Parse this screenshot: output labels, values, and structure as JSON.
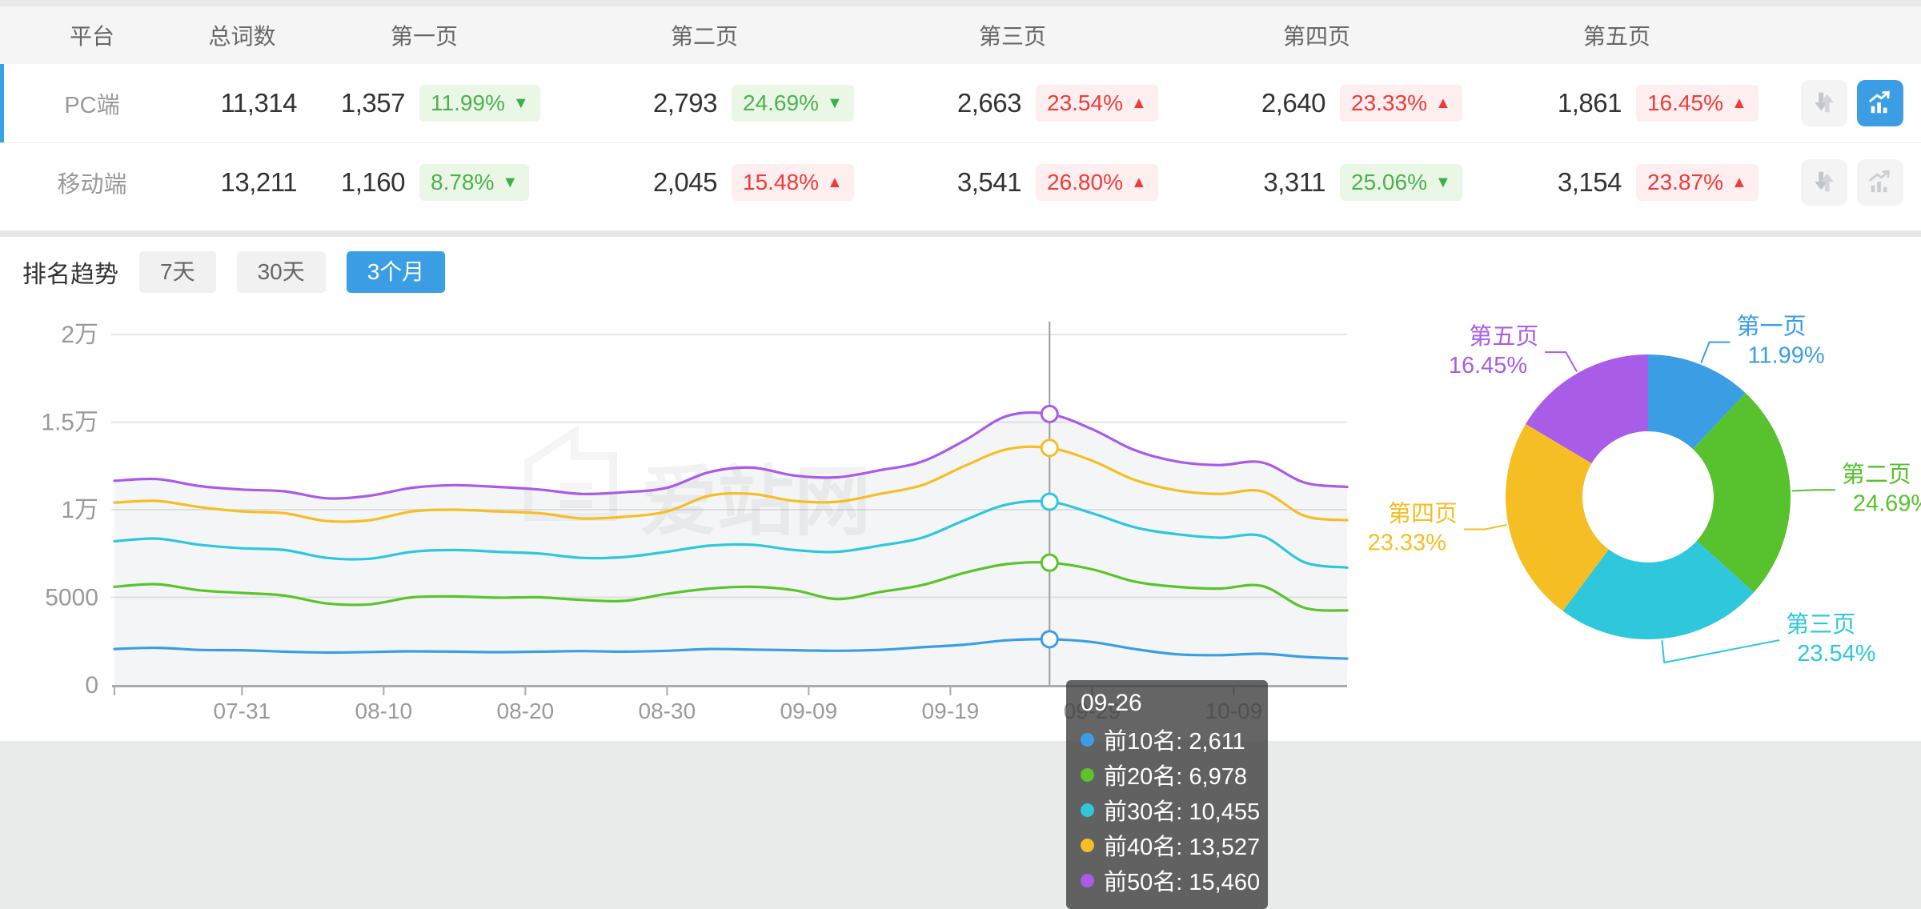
{
  "accent_color": "#3b9ee5",
  "table": {
    "headers": [
      "平台",
      "总词数",
      "第一页",
      "第二页",
      "第三页",
      "第四页",
      "第五页"
    ],
    "rows": [
      {
        "platform": "PC端",
        "total": "11,314",
        "selected": true,
        "pages": [
          {
            "count": "1,357",
            "pct": "11.99%",
            "arrow": "▼",
            "direction": "down"
          },
          {
            "count": "2,793",
            "pct": "24.69%",
            "arrow": "▼",
            "direction": "down"
          },
          {
            "count": "2,663",
            "pct": "23.54%",
            "arrow": "▲",
            "direction": "up"
          },
          {
            "count": "2,640",
            "pct": "23.33%",
            "arrow": "▲",
            "direction": "up"
          },
          {
            "count": "1,861",
            "pct": "16.45%",
            "arrow": "▲",
            "direction": "up"
          }
        ]
      },
      {
        "platform": "移动端",
        "total": "13,211",
        "selected": false,
        "pages": [
          {
            "count": "1,160",
            "pct": "8.78%",
            "arrow": "▼",
            "direction": "down"
          },
          {
            "count": "2,045",
            "pct": "15.48%",
            "arrow": "▲",
            "direction": "up"
          },
          {
            "count": "3,541",
            "pct": "26.80%",
            "arrow": "▲",
            "direction": "up"
          },
          {
            "count": "3,311",
            "pct": "25.06%",
            "arrow": "▼",
            "direction": "down"
          },
          {
            "count": "3,154",
            "pct": "23.87%",
            "arrow": "▲",
            "direction": "up"
          }
        ]
      }
    ]
  },
  "trend_section": {
    "title": "排名趋势",
    "tabs": [
      {
        "label": "7天",
        "active": false
      },
      {
        "label": "30天",
        "active": false
      },
      {
        "label": "3个月",
        "active": true
      }
    ],
    "watermark": "爱站网"
  },
  "chart_data": [
    {
      "type": "line",
      "title": "排名趋势 3个月",
      "x": [
        "07-22",
        "07-25",
        "07-28",
        "07-31",
        "08-03",
        "08-06",
        "08-09",
        "08-12",
        "08-15",
        "08-18",
        "08-21",
        "08-24",
        "08-27",
        "08-30",
        "09-02",
        "09-05",
        "09-08",
        "09-11",
        "09-14",
        "09-17",
        "09-20",
        "09-23",
        "09-26",
        "09-29",
        "10-02",
        "10-05",
        "10-08",
        "10-11",
        "10-14",
        "10-17"
      ],
      "series": [
        {
          "name": "前10名",
          "color": "#3b9ee5",
          "values": [
            2050,
            2120,
            2000,
            1980,
            1900,
            1850,
            1880,
            1920,
            1900,
            1870,
            1900,
            1930,
            1900,
            1950,
            2050,
            2020,
            1980,
            1950,
            2000,
            2150,
            2300,
            2550,
            2611,
            2450,
            2050,
            1750,
            1700,
            1780,
            1600,
            1500
          ]
        },
        {
          "name": "前20名",
          "color": "#5ac42a",
          "values": [
            5600,
            5750,
            5400,
            5250,
            5100,
            4650,
            4600,
            5000,
            5050,
            4980,
            5000,
            4850,
            4800,
            5200,
            5500,
            5600,
            5400,
            4900,
            5300,
            5700,
            6400,
            6900,
            6978,
            6600,
            5900,
            5600,
            5500,
            5650,
            4400,
            4250
          ]
        },
        {
          "name": "前30名",
          "color": "#2ec7dc",
          "values": [
            8200,
            8350,
            8000,
            7800,
            7700,
            7250,
            7200,
            7600,
            7700,
            7600,
            7500,
            7250,
            7300,
            7600,
            7950,
            8000,
            7700,
            7600,
            7950,
            8400,
            9400,
            10300,
            10455,
            9800,
            9000,
            8600,
            8400,
            8500,
            7000,
            6700
          ]
        },
        {
          "name": "前40名",
          "color": "#f6be25",
          "values": [
            10400,
            10500,
            10150,
            9900,
            9800,
            9350,
            9400,
            9900,
            10000,
            9900,
            9800,
            9500,
            9600,
            9900,
            10800,
            10900,
            10500,
            10450,
            10900,
            11400,
            12500,
            13450,
            13527,
            12800,
            11700,
            11100,
            10900,
            11050,
            9650,
            9400
          ]
        },
        {
          "name": "前50名",
          "color": "#a95ce8",
          "values": [
            11650,
            11750,
            11350,
            11150,
            11050,
            10650,
            10800,
            11250,
            11400,
            11300,
            11150,
            10900,
            11000,
            11250,
            12150,
            12400,
            11950,
            11850,
            12250,
            12750,
            13950,
            15350,
            15460,
            14600,
            13400,
            12750,
            12550,
            12700,
            11550,
            11300
          ]
        }
      ],
      "ylim": [
        0,
        20000
      ],
      "yticks": [
        {
          "v": 0,
          "label": "0"
        },
        {
          "v": 5000,
          "label": "5000"
        },
        {
          "v": 10000,
          "label": "1万"
        },
        {
          "v": 15000,
          "label": "1.5万"
        },
        {
          "v": 20000,
          "label": "2万"
        }
      ],
      "xticks": [
        "07-31",
        "08-10",
        "08-20",
        "08-30",
        "09-09",
        "09-19",
        "09-29",
        "10-09"
      ],
      "grid": true,
      "legend": "none",
      "tooltip": {
        "date": "09-26",
        "items": [
          {
            "name": "前10名",
            "value": "2,611"
          },
          {
            "name": "前20名",
            "value": "6,978"
          },
          {
            "name": "前30名",
            "value": "10,455"
          },
          {
            "name": "前40名",
            "value": "13,527"
          },
          {
            "name": "前50名",
            "value": "15,460"
          }
        ]
      }
    },
    {
      "type": "pie",
      "inner_radius_ratio": 0.46,
      "slices": [
        {
          "label": "第一页",
          "pct": 11.99,
          "pct_label": "11.99%",
          "color": "#3b9ee5",
          "label_offset": [
            0,
            0
          ]
        },
        {
          "label": "第二页",
          "pct": 24.69,
          "pct_label": "24.69%",
          "color": "#57c22d",
          "label_offset": [
            0,
            0
          ]
        },
        {
          "label": "第三页",
          "pct": 23.54,
          "pct_label": "23.54%",
          "color": "#2ec7dc",
          "label_offset": [
            118,
            -28
          ]
        },
        {
          "label": "第四页",
          "pct": 23.33,
          "pct_label": "23.33%",
          "color": "#f6be25",
          "label_offset": [
            0,
            0
          ]
        },
        {
          "label": "第五页",
          "pct": 16.45,
          "pct_label": "16.45%",
          "color": "#a95ce8",
          "label_offset": [
            0,
            0
          ]
        }
      ]
    }
  ]
}
